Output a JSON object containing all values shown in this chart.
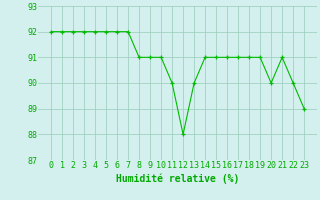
{
  "x": [
    0,
    1,
    2,
    3,
    4,
    5,
    6,
    7,
    8,
    9,
    10,
    11,
    12,
    13,
    14,
    15,
    16,
    17,
    18,
    19,
    20,
    21,
    22,
    23
  ],
  "y": [
    92,
    92,
    92,
    92,
    92,
    92,
    92,
    92,
    91,
    91,
    91,
    90,
    88,
    90,
    91,
    91,
    91,
    91,
    91,
    91,
    90,
    91,
    90,
    89
  ],
  "xlabel": "Humidité relative (%)",
  "ylim": [
    87,
    93
  ],
  "yticks": [
    87,
    88,
    89,
    90,
    91,
    92,
    93
  ],
  "xticks": [
    0,
    1,
    2,
    3,
    4,
    5,
    6,
    7,
    8,
    9,
    10,
    11,
    12,
    13,
    14,
    15,
    16,
    17,
    18,
    19,
    20,
    21,
    22,
    23
  ],
  "line_color": "#00bb00",
  "marker_color": "#00bb00",
  "bg_color": "#d4f0ee",
  "grid_color": "#99ccbb",
  "text_color": "#00aa00",
  "xlabel_fontsize": 7,
  "tick_fontsize": 6,
  "title_fontsize": 7
}
